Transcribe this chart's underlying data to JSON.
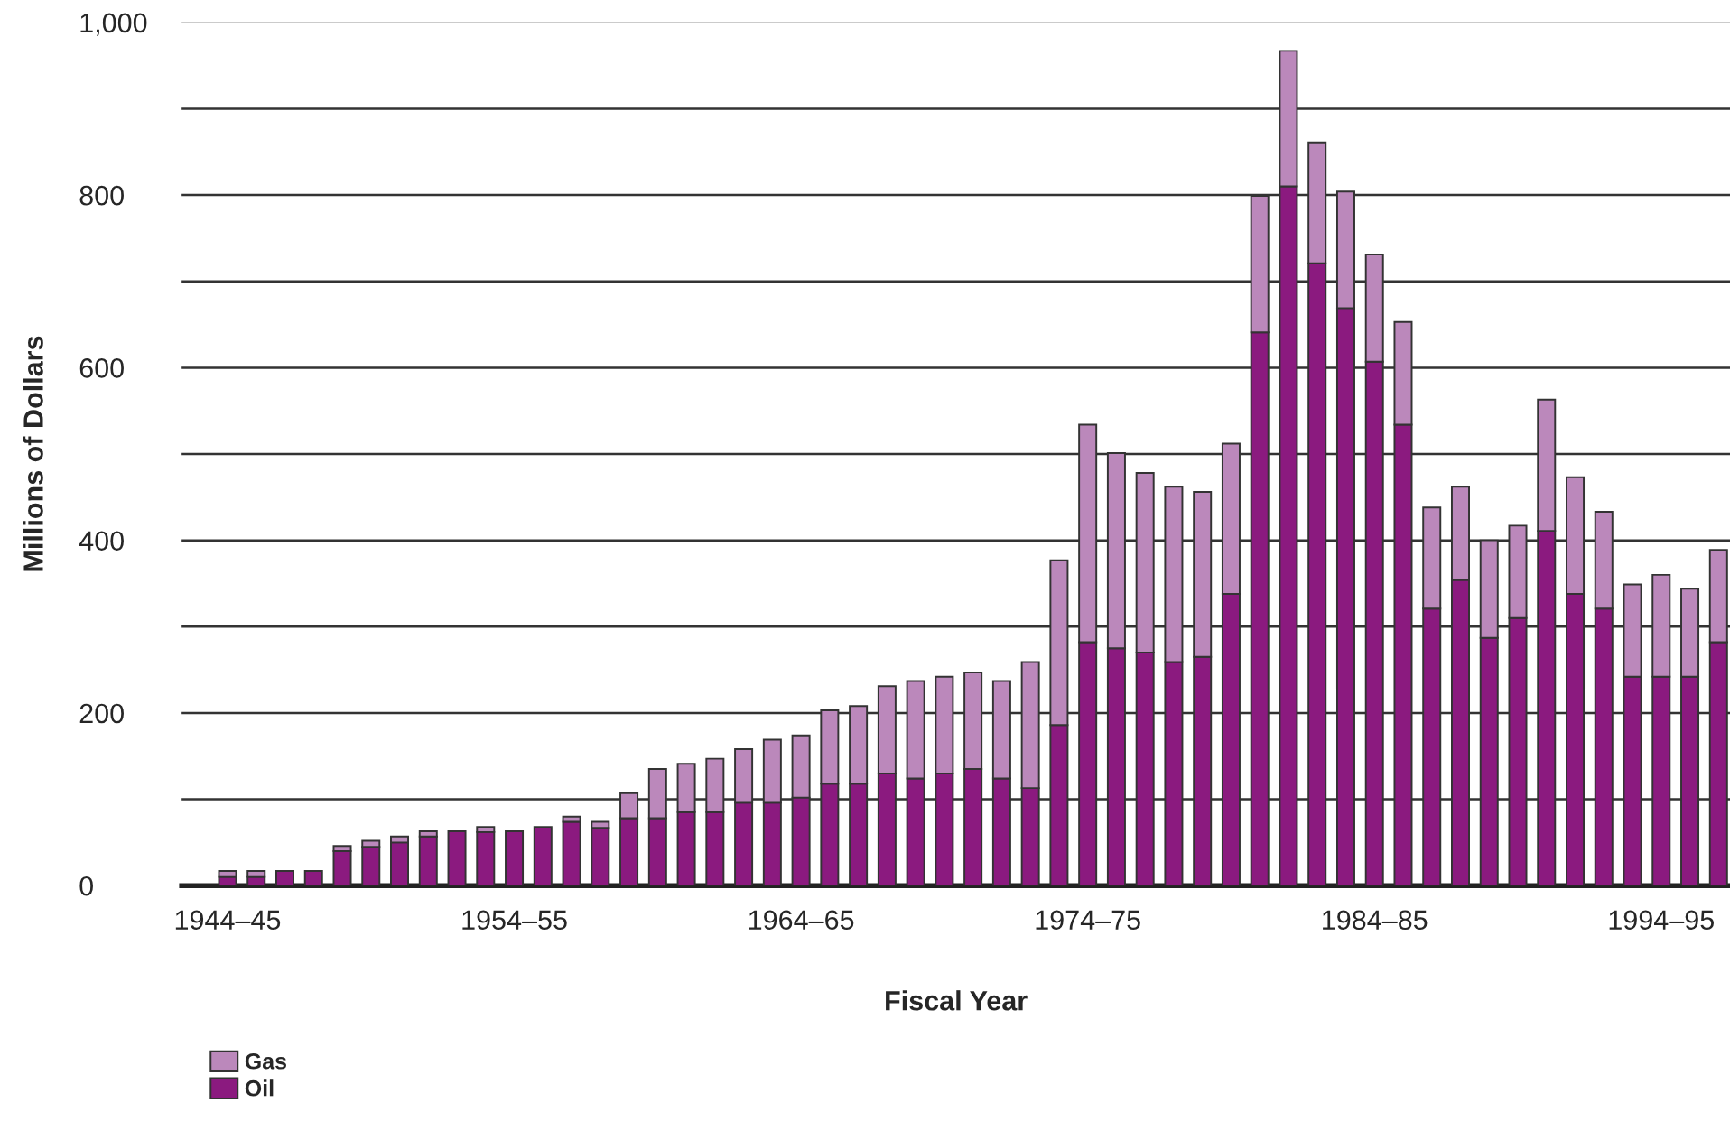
{
  "chart_data": {
    "type": "bar",
    "stacked": true,
    "xlabel": "Fiscal Year",
    "ylabel": "Millions of Dollars",
    "categories": [
      "1944–45",
      null,
      null,
      null,
      null,
      null,
      null,
      null,
      null,
      null,
      "1954–55",
      null,
      null,
      null,
      null,
      null,
      null,
      null,
      null,
      null,
      "1964–65",
      null,
      null,
      null,
      null,
      null,
      null,
      null,
      null,
      null,
      "1974–75",
      null,
      null,
      null,
      null,
      null,
      null,
      null,
      null,
      null,
      "1984–85",
      null,
      null,
      null,
      null,
      null,
      null,
      null,
      null,
      null,
      "1994–95",
      null,
      null
    ],
    "series": [
      {
        "name": "Oil",
        "color": "#8b1a7f",
        "values": [
          10,
          10,
          17,
          17,
          40,
          45,
          50,
          57,
          63,
          62,
          63,
          68,
          74,
          67,
          78,
          78,
          85,
          85,
          96,
          96,
          102,
          118,
          118,
          130,
          124,
          130,
          135,
          124,
          113,
          186,
          282,
          275,
          270,
          259,
          265,
          338,
          641,
          810,
          721,
          669,
          607,
          534,
          321,
          354,
          287,
          310,
          411,
          338,
          321,
          242,
          242,
          242,
          282
        ]
      },
      {
        "name": "Gas",
        "color": "#bb88bb",
        "values": [
          7,
          7,
          0,
          0,
          6,
          7,
          7,
          6,
          0,
          6,
          0,
          0,
          6,
          7,
          29,
          57,
          56,
          62,
          62,
          73,
          72,
          85,
          90,
          101,
          113,
          112,
          112,
          113,
          146,
          191,
          252,
          226,
          208,
          203,
          191,
          174,
          158,
          157,
          140,
          135,
          124,
          119,
          117,
          108,
          113,
          107,
          152,
          135,
          112,
          107,
          118,
          102,
          107
        ]
      }
    ],
    "ylim": [
      0,
      1000
    ],
    "yticks": [
      0,
      {
        "value": 100,
        "label": null
      },
      200,
      {
        "value": 300,
        "label": null
      },
      400,
      {
        "value": 500,
        "label": null
      },
      600,
      {
        "value": 700,
        "label": null
      },
      800,
      {
        "value": 900,
        "label": null
      },
      {
        "value": 1000,
        "label": "1,000"
      }
    ],
    "grid": "y",
    "legend": "bottom left"
  }
}
